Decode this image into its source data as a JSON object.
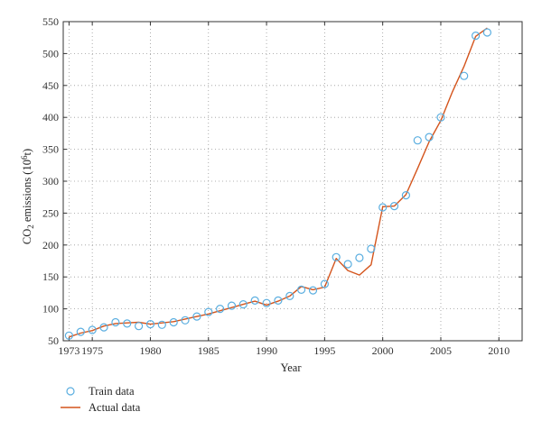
{
  "chart_data": {
    "type": "line",
    "title": "",
    "xlabel": "Year",
    "ylabel": {
      "prefix": "CO",
      "subscript": "2",
      "middle": " emissions (10",
      "superscript": "6",
      "suffix": "t)"
    },
    "xlim": [
      1972.5,
      2012
    ],
    "ylim": [
      50,
      550
    ],
    "xticks": [
      1973,
      1975,
      1980,
      1985,
      1990,
      1995,
      2000,
      2005,
      2010
    ],
    "xtick_labels": [
      "1973",
      "1975",
      "1980",
      "1985",
      "1990",
      "1995",
      "2000",
      "2005",
      "2010"
    ],
    "yticks": [
      50,
      100,
      150,
      200,
      250,
      300,
      350,
      400,
      450,
      500,
      550
    ],
    "ytick_labels": [
      "50",
      "100",
      "150",
      "200",
      "250",
      "300",
      "350",
      "400",
      "450",
      "500",
      "550"
    ],
    "grid": "dotted",
    "legend_position": "bottom-left, below plot",
    "series": [
      {
        "name": "Train data",
        "style": "markers",
        "marker": "open-circle",
        "color": "#5aaee0",
        "x": [
          1973,
          1974,
          1975,
          1976,
          1977,
          1978,
          1979,
          1980,
          1981,
          1982,
          1983,
          1984,
          1985,
          1986,
          1987,
          1988,
          1989,
          1990,
          1991,
          1992,
          1993,
          1994,
          1995,
          1996,
          1997,
          1998,
          1999,
          2000,
          2001,
          2002,
          2003,
          2004,
          2005,
          2007,
          2008,
          2009
        ],
        "y": [
          58,
          64,
          67,
          71,
          79,
          77,
          73,
          76,
          75,
          79,
          82,
          88,
          95,
          100,
          105,
          107,
          113,
          109,
          113,
          120,
          130,
          129,
          139,
          181,
          170,
          180,
          194,
          259,
          261,
          278,
          364,
          369,
          400,
          465,
          528,
          533
        ]
      },
      {
        "name": "Actual data",
        "style": "line",
        "color": "#d4541c",
        "x": [
          1973,
          1974,
          1975,
          1976,
          1977,
          1978,
          1979,
          1980,
          1981,
          1982,
          1983,
          1984,
          1985,
          1986,
          1987,
          1988,
          1989,
          1990,
          1991,
          1992,
          1993,
          1994,
          1995,
          1996,
          1997,
          1998,
          1999,
          2000,
          2001,
          2002,
          2003,
          2004,
          2005,
          2006,
          2007,
          2008,
          2009
        ],
        "y": [
          56,
          62,
          66,
          73,
          77,
          78,
          79,
          76,
          78,
          80,
          84,
          88,
          92,
          97,
          102,
          107,
          112,
          106,
          112,
          120,
          135,
          130,
          134,
          179,
          160,
          153,
          169,
          260,
          261,
          279,
          320,
          362,
          395,
          440,
          480,
          527,
          540
        ]
      }
    ]
  }
}
